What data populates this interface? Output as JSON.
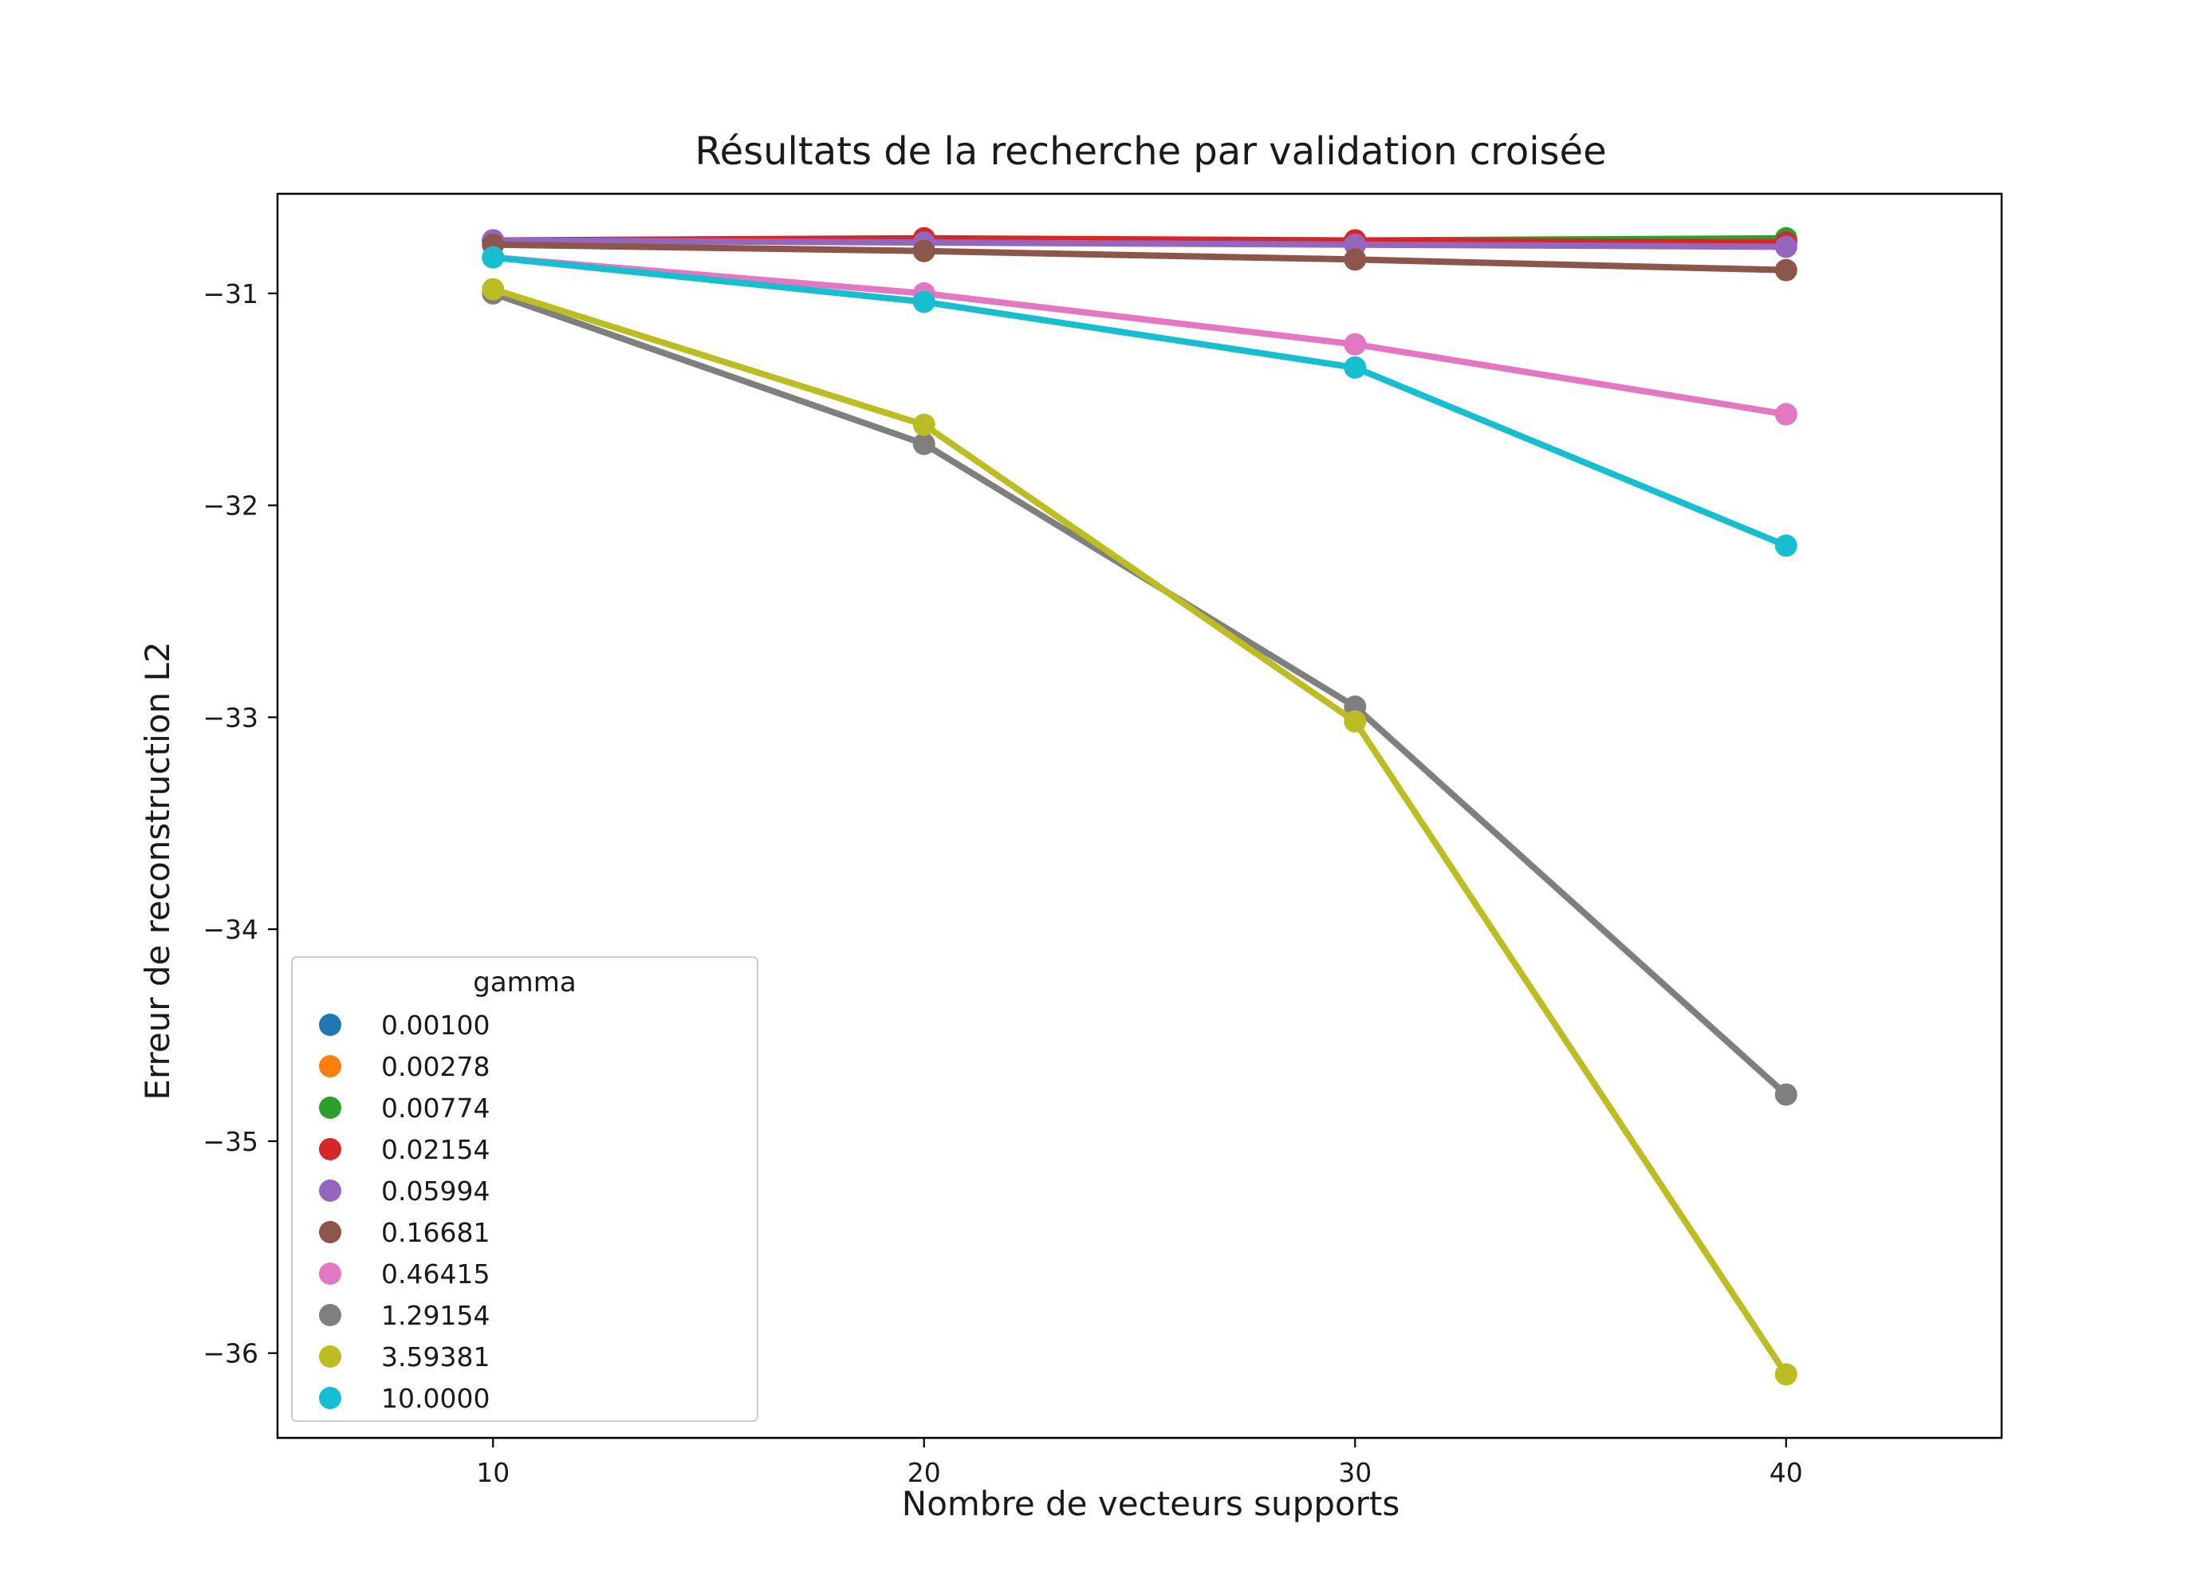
{
  "chart_data": {
    "type": "line",
    "title": "Résultats de la recherche par validation croisée",
    "xlabel": "Nombre de vecteurs supports",
    "ylabel": "Erreur de reconstruction L2",
    "x": [
      10,
      20,
      30,
      40
    ],
    "xlim": [
      5,
      45
    ],
    "ylim": [
      -36.4,
      -30.53
    ],
    "xticks": [
      10,
      20,
      30,
      40
    ],
    "yticks": [
      -31,
      -32,
      -33,
      -34,
      -35,
      -36
    ],
    "ytick_labels": [
      "−31",
      "−32",
      "−33",
      "−34",
      "−35",
      "−36"
    ],
    "grid": false,
    "legend": {
      "title": "gamma",
      "location": "lower-left"
    },
    "series": [
      {
        "name": "0.00100",
        "color": "#1f77b4",
        "values": [
          -30.75,
          -30.75,
          -30.75,
          -30.75
        ]
      },
      {
        "name": "0.00278",
        "color": "#ff7f0e",
        "values": [
          -30.75,
          -30.75,
          -30.75,
          -30.75
        ]
      },
      {
        "name": "0.00774",
        "color": "#2ca02c",
        "values": [
          -30.75,
          -30.75,
          -30.75,
          -30.74
        ]
      },
      {
        "name": "0.02154",
        "color": "#d62728",
        "values": [
          -30.75,
          -30.74,
          -30.75,
          -30.76
        ]
      },
      {
        "name": "0.05994",
        "color": "#9467bd",
        "values": [
          -30.75,
          -30.76,
          -30.77,
          -30.78
        ]
      },
      {
        "name": "0.16681",
        "color": "#8c564b",
        "values": [
          -30.77,
          -30.8,
          -30.84,
          -30.89
        ]
      },
      {
        "name": "0.46415",
        "color": "#e377c2",
        "values": [
          -30.83,
          -31.0,
          -31.24,
          -31.57
        ]
      },
      {
        "name": "1.29154",
        "color": "#7f7f7f",
        "values": [
          -31.0,
          -31.71,
          -32.95,
          -34.78
        ]
      },
      {
        "name": "3.59381",
        "color": "#bcbd22",
        "values": [
          -30.98,
          -31.62,
          -33.02,
          -36.1
        ]
      },
      {
        "name": "10.0000",
        "color": "#17becf",
        "values": [
          -30.83,
          -31.04,
          -31.35,
          -32.19
        ]
      }
    ]
  }
}
